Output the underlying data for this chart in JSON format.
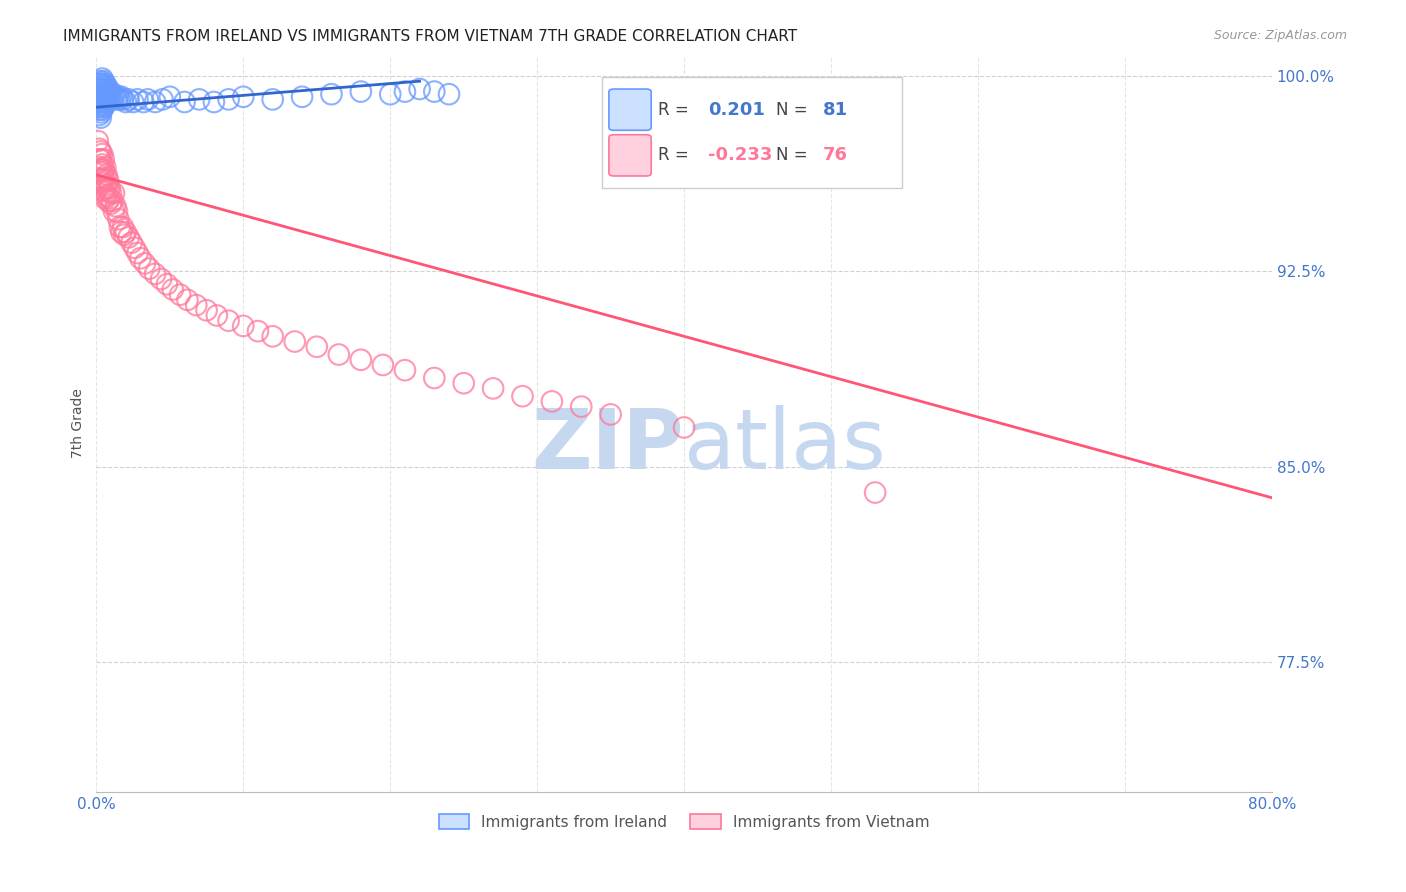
{
  "title": "IMMIGRANTS FROM IRELAND VS IMMIGRANTS FROM VIETNAM 7TH GRADE CORRELATION CHART",
  "source": "Source: ZipAtlas.com",
  "ylabel": "7th Grade",
  "xmin": 0.0,
  "xmax": 0.8,
  "ymin": 0.725,
  "ymax": 1.008,
  "yticks": [
    1.0,
    0.925,
    0.85,
    0.775
  ],
  "ytick_labels": [
    "100.0%",
    "92.5%",
    "85.0%",
    "77.5%"
  ],
  "ireland_R": 0.201,
  "ireland_N": 81,
  "vietnam_R": -0.233,
  "vietnam_N": 76,
  "ireland_color": "#6699ff",
  "vietnam_color": "#ff7799",
  "ireland_line_color": "#3366cc",
  "vietnam_line_color": "#ff5577",
  "watermark_zip_color": "#c5d8f0",
  "watermark_atlas_color": "#c5d8f0",
  "background_color": "#ffffff",
  "title_fontsize": 11,
  "source_fontsize": 9,
  "axis_label_color": "#4477cc",
  "grid_color": "#cccccc",
  "ireland_line_x0": 0.0,
  "ireland_line_y0": 0.988,
  "ireland_line_x1": 0.22,
  "ireland_line_y1": 0.998,
  "vietnam_line_x0": 0.0,
  "vietnam_line_y0": 0.962,
  "vietnam_line_x1": 0.8,
  "vietnam_line_y1": 0.838,
  "ireland_x": [
    0.001,
    0.001,
    0.001,
    0.001,
    0.002,
    0.002,
    0.002,
    0.002,
    0.002,
    0.002,
    0.002,
    0.003,
    0.003,
    0.003,
    0.003,
    0.003,
    0.003,
    0.003,
    0.003,
    0.003,
    0.003,
    0.004,
    0.004,
    0.004,
    0.004,
    0.004,
    0.004,
    0.004,
    0.005,
    0.005,
    0.005,
    0.005,
    0.005,
    0.005,
    0.006,
    0.006,
    0.006,
    0.006,
    0.006,
    0.007,
    0.007,
    0.007,
    0.007,
    0.008,
    0.008,
    0.008,
    0.009,
    0.009,
    0.01,
    0.01,
    0.011,
    0.012,
    0.013,
    0.014,
    0.015,
    0.016,
    0.017,
    0.018,
    0.02,
    0.022,
    0.025,
    0.028,
    0.032,
    0.035,
    0.04,
    0.045,
    0.05,
    0.06,
    0.07,
    0.08,
    0.09,
    0.1,
    0.12,
    0.14,
    0.16,
    0.18,
    0.2,
    0.21,
    0.22,
    0.23,
    0.24
  ],
  "ireland_y": [
    0.995,
    0.993,
    0.99,
    0.988,
    0.997,
    0.995,
    0.993,
    0.991,
    0.989,
    0.987,
    0.985,
    0.998,
    0.996,
    0.994,
    0.992,
    0.99,
    0.988,
    0.986,
    0.984,
    0.997,
    0.995,
    0.999,
    0.997,
    0.995,
    0.993,
    0.991,
    0.989,
    0.987,
    0.998,
    0.996,
    0.994,
    0.992,
    0.99,
    0.988,
    0.997,
    0.995,
    0.993,
    0.991,
    0.989,
    0.996,
    0.994,
    0.992,
    0.99,
    0.995,
    0.993,
    0.991,
    0.994,
    0.992,
    0.993,
    0.991,
    0.992,
    0.993,
    0.992,
    0.991,
    0.992,
    0.991,
    0.992,
    0.991,
    0.99,
    0.991,
    0.99,
    0.991,
    0.99,
    0.991,
    0.99,
    0.991,
    0.992,
    0.99,
    0.991,
    0.99,
    0.991,
    0.992,
    0.991,
    0.992,
    0.993,
    0.994,
    0.993,
    0.994,
    0.995,
    0.994,
    0.993
  ],
  "vietnam_x": [
    0.001,
    0.002,
    0.002,
    0.002,
    0.003,
    0.003,
    0.003,
    0.003,
    0.004,
    0.004,
    0.004,
    0.004,
    0.005,
    0.005,
    0.005,
    0.005,
    0.006,
    0.006,
    0.006,
    0.006,
    0.007,
    0.007,
    0.007,
    0.008,
    0.008,
    0.008,
    0.009,
    0.009,
    0.01,
    0.01,
    0.011,
    0.012,
    0.012,
    0.013,
    0.014,
    0.015,
    0.016,
    0.017,
    0.018,
    0.019,
    0.02,
    0.022,
    0.024,
    0.026,
    0.028,
    0.03,
    0.033,
    0.036,
    0.04,
    0.044,
    0.048,
    0.052,
    0.057,
    0.062,
    0.068,
    0.075,
    0.082,
    0.09,
    0.1,
    0.11,
    0.12,
    0.135,
    0.15,
    0.165,
    0.18,
    0.195,
    0.21,
    0.23,
    0.25,
    0.27,
    0.29,
    0.31,
    0.33,
    0.35,
    0.4,
    0.53
  ],
  "vietnam_y": [
    0.975,
    0.972,
    0.968,
    0.965,
    0.971,
    0.968,
    0.964,
    0.96,
    0.97,
    0.966,
    0.963,
    0.959,
    0.968,
    0.964,
    0.96,
    0.956,
    0.965,
    0.961,
    0.957,
    0.953,
    0.962,
    0.958,
    0.954,
    0.96,
    0.956,
    0.952,
    0.957,
    0.953,
    0.955,
    0.951,
    0.952,
    0.955,
    0.948,
    0.95,
    0.948,
    0.945,
    0.942,
    0.94,
    0.942,
    0.939,
    0.94,
    0.938,
    0.936,
    0.934,
    0.932,
    0.93,
    0.928,
    0.926,
    0.924,
    0.922,
    0.92,
    0.918,
    0.916,
    0.914,
    0.912,
    0.91,
    0.908,
    0.906,
    0.904,
    0.902,
    0.9,
    0.898,
    0.896,
    0.893,
    0.891,
    0.889,
    0.887,
    0.884,
    0.882,
    0.88,
    0.877,
    0.875,
    0.873,
    0.87,
    0.865,
    0.84
  ]
}
